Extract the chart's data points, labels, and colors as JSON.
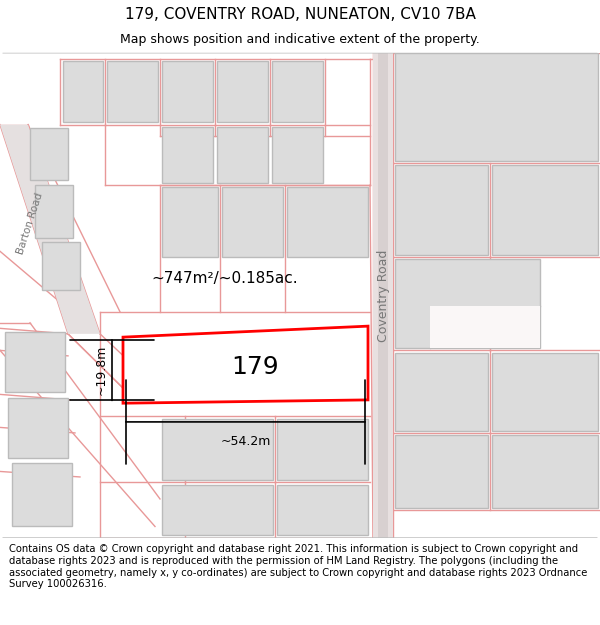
{
  "title": "179, COVENTRY ROAD, NUNEATON, CV10 7BA",
  "subtitle": "Map shows position and indicative extent of the property.",
  "footer": "Contains OS data © Crown copyright and database right 2021. This information is subject to Crown copyright and database rights 2023 and is reproduced with the permission of HM Land Registry. The polygons (including the associated geometry, namely x, y co-ordinates) are subject to Crown copyright and database rights 2023 Ordnance Survey 100026316.",
  "map_bg": "#faf7f7",
  "building_fill": "#dcdcdc",
  "building_stroke": "#bbbbbb",
  "highlight_fill": "#ffffff",
  "highlight_stroke": "#ff0000",
  "parcel_color": "#e89898",
  "road_fill": "#d8d0d0",
  "area_text": "~747m²/~0.185ac.",
  "width_text": "~54.2m",
  "height_text": "~19.8m",
  "property_label": "179",
  "road_label": "Coventry Road",
  "barton_label": "Barton Road",
  "title_fontsize": 11,
  "subtitle_fontsize": 9,
  "footer_fontsize": 7.2,
  "label_fontsize": 9,
  "dim_fontsize": 9,
  "area_fontsize": 11,
  "prop_fontsize": 18
}
